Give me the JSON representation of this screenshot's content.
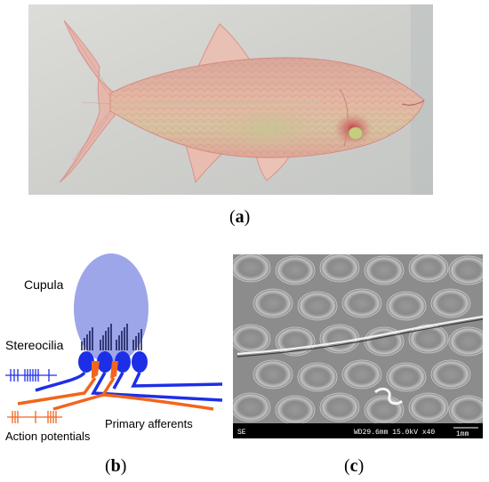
{
  "panel_a": {
    "caption_open": "(",
    "caption_letter": "a",
    "caption_close": ")"
  },
  "panel_b": {
    "caption_open": "(",
    "caption_letter": "b",
    "caption_close": ")",
    "labels": {
      "cupula": "Cupula",
      "stereocilia": "Stereocilia",
      "primary_afferents": "Primary afferents",
      "action_potentials": "Action potentials"
    },
    "colors": {
      "cupula_fill": "#9ea6ea",
      "hair_cell_blue": "#1d2fe6",
      "afferent_orange": "#f2651c",
      "stereocilia": "#1a1f5c"
    }
  },
  "panel_c": {
    "caption_open": "(",
    "caption_letter": "c",
    "caption_close": ")",
    "sem_info": {
      "detector": "SE",
      "parameters": "WD29.6mm 15.0kV x40",
      "scale": "1mm"
    }
  }
}
